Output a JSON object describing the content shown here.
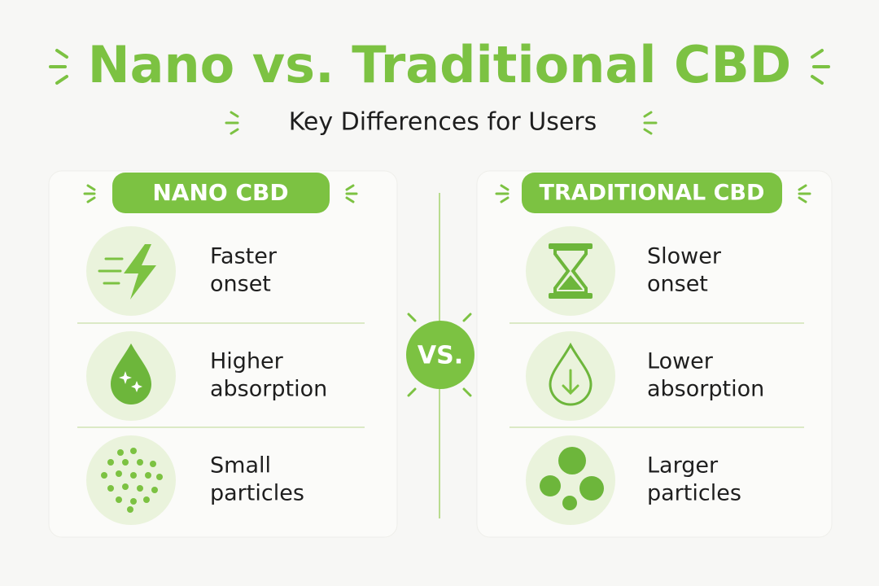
{
  "title": "Nano vs. Traditional CBD",
  "subtitle": "Key Differences for Users",
  "vs_label": "VS.",
  "panels": [
    {
      "header": "NANO CBD",
      "items": [
        {
          "lines": [
            "Faster",
            "onset"
          ]
        },
        {
          "lines": [
            "Higher",
            "absorption"
          ]
        },
        {
          "lines": [
            "Small",
            "particles"
          ]
        }
      ]
    },
    {
      "header": "TRADITIONAL CBD",
      "items": [
        {
          "lines": [
            "Slower",
            "onset"
          ]
        },
        {
          "lines": [
            "Lower",
            "absorption"
          ]
        },
        {
          "lines": [
            "Larger",
            "particles"
          ]
        }
      ]
    }
  ]
}
